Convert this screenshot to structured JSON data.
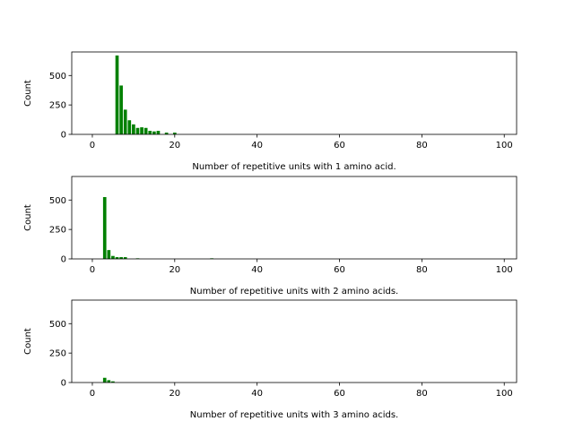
{
  "chart_data": [
    {
      "type": "bar",
      "xlabel": "Number of repetitive units with 1 amino acid.",
      "ylabel": "Count",
      "xlim": [
        -5,
        103
      ],
      "ylim": [
        0,
        700
      ],
      "xticks": [
        0,
        20,
        40,
        60,
        80,
        100
      ],
      "yticks": [
        0,
        250,
        500
      ],
      "bar_color": "#008000",
      "x": [
        6,
        7,
        8,
        9,
        10,
        11,
        12,
        13,
        14,
        15,
        16,
        18,
        20
      ],
      "values": [
        670,
        415,
        210,
        120,
        85,
        55,
        60,
        55,
        30,
        25,
        30,
        15,
        15
      ]
    },
    {
      "type": "bar",
      "xlabel": "Number of repetitive units with 2 amino acids.",
      "ylabel": "Count",
      "xlim": [
        -5,
        103
      ],
      "ylim": [
        0,
        700
      ],
      "xticks": [
        0,
        20,
        40,
        60,
        80,
        100
      ],
      "yticks": [
        0,
        250,
        500
      ],
      "bar_color": "#008000",
      "x": [
        3,
        4,
        5,
        6,
        7,
        8,
        11,
        29
      ],
      "values": [
        525,
        75,
        25,
        15,
        15,
        15,
        5,
        5
      ]
    },
    {
      "type": "bar",
      "xlabel": "Number of repetitive units with 3 amino acids.",
      "ylabel": "Count",
      "xlim": [
        -5,
        103
      ],
      "ylim": [
        0,
        700
      ],
      "xticks": [
        0,
        20,
        40,
        60,
        80,
        100
      ],
      "yticks": [
        0,
        250,
        500
      ],
      "bar_color": "#008000",
      "x": [
        3,
        4,
        5
      ],
      "values": [
        40,
        20,
        10
      ]
    }
  ]
}
